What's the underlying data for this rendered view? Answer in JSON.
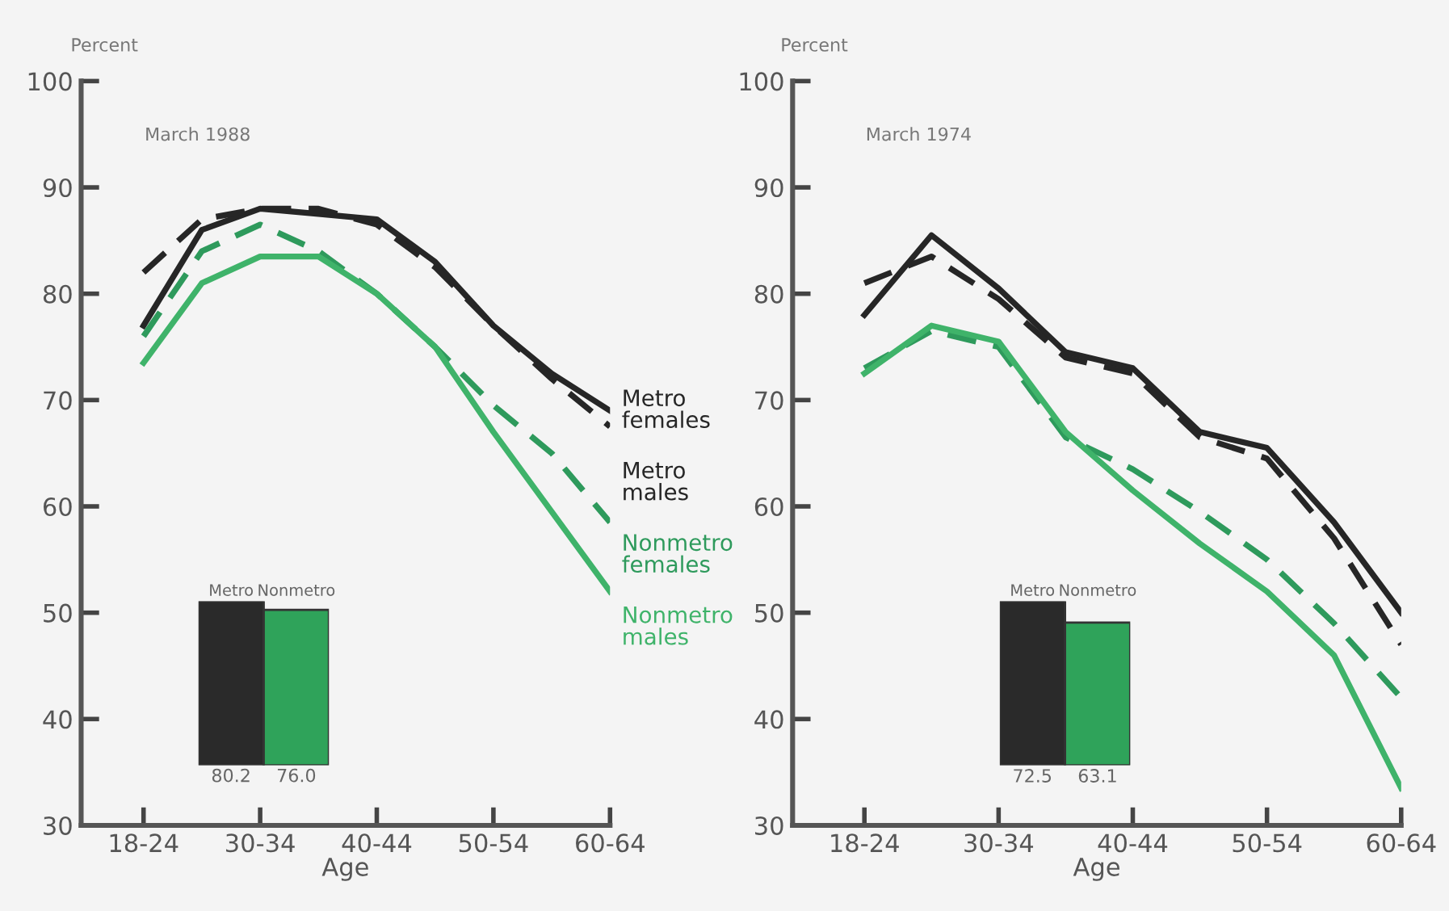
{
  "chart_data": [
    {
      "type": "line",
      "title": "March 1988",
      "xlabel": "Age",
      "ylabel": "Percent",
      "categories": [
        "18-24",
        null,
        "30-34",
        null,
        "40-44",
        null,
        "50-54",
        null,
        "60-64"
      ],
      "ylim": [
        30,
        100
      ],
      "yticks": [
        30,
        40,
        50,
        60,
        70,
        80,
        90,
        100
      ],
      "series": [
        {
          "name": "Metro females",
          "color": "#262626",
          "line_style": "solid",
          "values": [
            77,
            86,
            88,
            87.5,
            87,
            83,
            77,
            72.5,
            69
          ]
        },
        {
          "name": "Metro males",
          "color": "#262626",
          "line_style": "dashed",
          "values": [
            82,
            87,
            88,
            88,
            86.5,
            82.5,
            77,
            72,
            67.5
          ]
        },
        {
          "name": "Nonmetro females",
          "color": "#2e9a5c",
          "line_style": "dashed",
          "values": [
            76,
            84,
            86.5,
            84,
            80,
            75,
            69.5,
            65,
            58.5
          ]
        },
        {
          "name": "Nonmetro males",
          "color": "#3fb36a",
          "line_style": "solid",
          "values": [
            73.5,
            81,
            83.5,
            83.5,
            80,
            75,
            67,
            59.5,
            52
          ]
        }
      ]
    },
    {
      "type": "bar",
      "categories": [
        "Metro",
        "Nonmetro"
      ],
      "values": [
        80.2,
        76.0
      ],
      "value_labels": [
        "80.2",
        "76.0"
      ],
      "colors": [
        "#2a2a2a",
        "#2fa35a"
      ]
    },
    {
      "type": "line",
      "title": "March 1974",
      "xlabel": "Age",
      "ylabel": "Percent",
      "categories": [
        "18-24",
        null,
        "30-34",
        null,
        "40-44",
        null,
        "50-54",
        null,
        "60-64"
      ],
      "ylim": [
        30,
        100
      ],
      "yticks": [
        30,
        40,
        50,
        60,
        70,
        80,
        90,
        100
      ],
      "series": [
        {
          "color": "#262626",
          "line_style": "solid",
          "values": [
            78,
            85.5,
            80.5,
            74.5,
            73,
            67,
            65.5,
            58.5,
            50
          ]
        },
        {
          "color": "#262626",
          "line_style": "dashed",
          "values": [
            81,
            83.5,
            79.5,
            74,
            72.5,
            66.5,
            64.5,
            57,
            47
          ]
        },
        {
          "color": "#2e9a5c",
          "line_style": "dashed",
          "values": [
            73,
            76.5,
            75,
            66.5,
            63.5,
            59.5,
            55,
            49,
            42
          ]
        },
        {
          "color": "#3fb36a",
          "line_style": "solid",
          "values": [
            72.5,
            77,
            75.5,
            67,
            61.5,
            56.5,
            52,
            46,
            33.5
          ]
        }
      ]
    },
    {
      "type": "bar",
      "categories": [
        "Metro",
        "Nonmetro"
      ],
      "values": [
        72.5,
        63.1
      ],
      "value_labels": [
        "72.5",
        "63.1"
      ],
      "colors": [
        "#2a2a2a",
        "#2fa35a"
      ]
    }
  ]
}
